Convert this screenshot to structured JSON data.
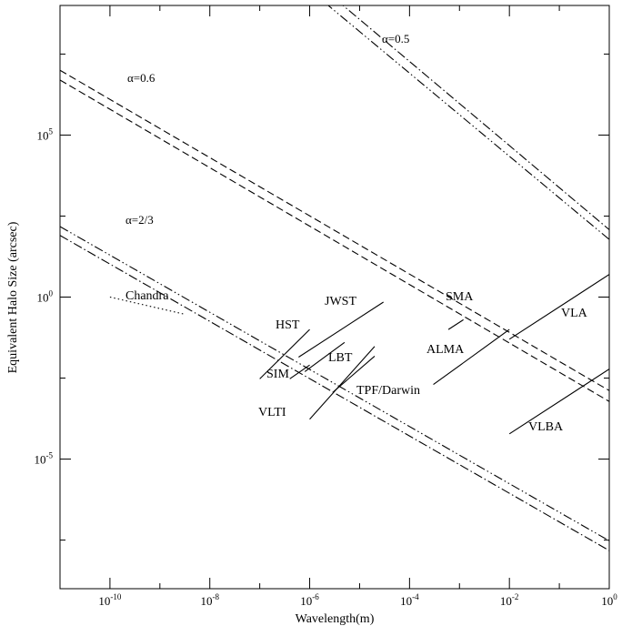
{
  "chart_data": {
    "type": "line",
    "xscale": "log",
    "yscale": "log",
    "xlabel": "Wavelength(m)",
    "ylabel": "Equivalent Halo Size (arcsec)",
    "xlim": [
      1e-11,
      1
    ],
    "ylim": [
      1e-09,
      1000000000.0
    ],
    "x_ticks": [
      {
        "value": 1e-10,
        "base": "10",
        "exp": "-10"
      },
      {
        "value": 1e-08,
        "base": "10",
        "exp": "-8"
      },
      {
        "value": 1e-06,
        "base": "10",
        "exp": "-6"
      },
      {
        "value": 0.0001,
        "base": "10",
        "exp": "-4"
      },
      {
        "value": 0.01,
        "base": "10",
        "exp": "-2"
      },
      {
        "value": 1,
        "base": "10",
        "exp": "0"
      }
    ],
    "y_ticks": [
      {
        "value": 100000.0,
        "base": "10",
        "exp": "5"
      },
      {
        "value": 1,
        "base": "10",
        "exp": "0"
      },
      {
        "value": 1e-05,
        "base": "10",
        "exp": "-5"
      }
    ],
    "series": [
      {
        "label": "α=0.6",
        "style": "dashed",
        "points": [
          [
            1e-11,
            10000000.0
          ],
          [
            1,
            0.0013
          ]
        ]
      },
      {
        "label": "",
        "style": "dashed",
        "points": [
          [
            1e-11,
            5000000.0
          ],
          [
            1,
            0.0006
          ]
        ]
      },
      {
        "label": "α=0.5",
        "style": "dash-dot-dot",
        "points": [
          [
            1e-06,
            3000000000.0
          ],
          [
            1,
            60.0
          ]
        ]
      },
      {
        "label": "",
        "style": "dash-dot",
        "points": [
          [
            2e-06,
            3000000000.0
          ],
          [
            1,
            120.0
          ]
        ]
      },
      {
        "label": "α=2/3",
        "style": "dash-dot-dot",
        "points": [
          [
            1e-11,
            150.0
          ],
          [
            1,
            3e-08
          ]
        ]
      },
      {
        "label": "",
        "style": "dash-dot",
        "points": [
          [
            1e-11,
            80.0
          ],
          [
            1,
            1.5e-08
          ]
        ]
      }
    ],
    "instruments": [
      {
        "label": "Chandra",
        "style": "dotted",
        "points": [
          [
            1e-10,
            1.0
          ],
          [
            3e-09,
            0.3
          ]
        ]
      },
      {
        "label": "HST",
        "points": [
          [
            1e-07,
            0.003
          ],
          [
            1e-06,
            0.1
          ]
        ]
      },
      {
        "label": "JWST",
        "points": [
          [
            6e-07,
            0.014
          ],
          [
            3e-05,
            0.7
          ]
        ]
      },
      {
        "label": "SIM",
        "points": [
          [
            4e-07,
            0.003
          ],
          [
            1e-06,
            0.008
          ]
        ]
      },
      {
        "label": "LBT",
        "points": [
          [
            8e-07,
            0.005
          ],
          [
            5e-06,
            0.04
          ]
        ]
      },
      {
        "label": "VLTI",
        "points": [
          [
            1e-06,
            0.00017
          ],
          [
            2e-05,
            0.03
          ]
        ]
      },
      {
        "label": "TPF/Darwin",
        "points": [
          [
            3e-06,
            0.0012
          ],
          [
            2e-05,
            0.015
          ]
        ]
      },
      {
        "label": "SMA",
        "points": [
          [
            0.0006,
            0.1
          ],
          [
            0.0012,
            0.2
          ]
        ]
      },
      {
        "label": "ALMA",
        "points": [
          [
            0.0003,
            0.002
          ],
          [
            0.01,
            0.1
          ]
        ]
      },
      {
        "label": "VLA",
        "points": [
          [
            0.01,
            0.05
          ],
          [
            1,
            5
          ]
        ]
      },
      {
        "label": "VLBA",
        "points": [
          [
            0.01,
            6e-05
          ],
          [
            1,
            0.006
          ]
        ]
      }
    ]
  }
}
